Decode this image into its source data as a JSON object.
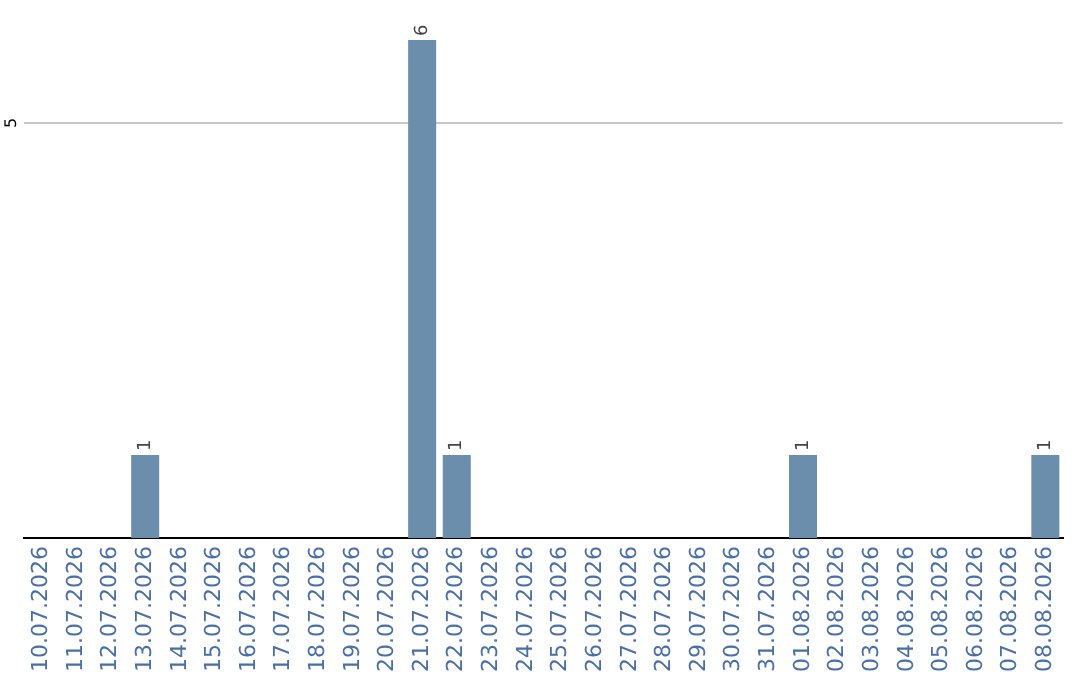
{
  "chart_data": {
    "type": "bar",
    "categories": [
      "10.07.2026",
      "11.07.2026",
      "12.07.2026",
      "13.07.2026",
      "14.07.2026",
      "15.07.2026",
      "16.07.2026",
      "17.07.2026",
      "18.07.2026",
      "19.07.2026",
      "20.07.2026",
      "21.07.2026",
      "22.07.2026",
      "23.07.2026",
      "24.07.2026",
      "25.07.2026",
      "26.07.2026",
      "27.07.2026",
      "28.07.2026",
      "29.07.2026",
      "30.07.2026",
      "31.07.2026",
      "01.08.2026",
      "02.08.2026",
      "03.08.2026",
      "04.08.2026",
      "05.08.2026",
      "06.08.2026",
      "07.08.2026",
      "08.08.2026"
    ],
    "values": [
      0,
      0,
      0,
      1,
      0,
      0,
      0,
      0,
      0,
      0,
      0,
      6,
      1,
      0,
      0,
      0,
      0,
      0,
      0,
      0,
      0,
      0,
      1,
      0,
      0,
      0,
      0,
      0,
      0,
      1
    ],
    "value_labels": [
      null,
      null,
      null,
      "1",
      null,
      null,
      null,
      null,
      null,
      null,
      null,
      "6",
      "1",
      null,
      null,
      null,
      null,
      null,
      null,
      null,
      null,
      null,
      "1",
      null,
      null,
      null,
      null,
      null,
      null,
      "1"
    ],
    "color": "#6c8ead",
    "ref_lines": [
      {
        "axis": "y",
        "value": 5,
        "label": "5",
        "color": "#c8c8c8"
      }
    ],
    "legend": false
  }
}
